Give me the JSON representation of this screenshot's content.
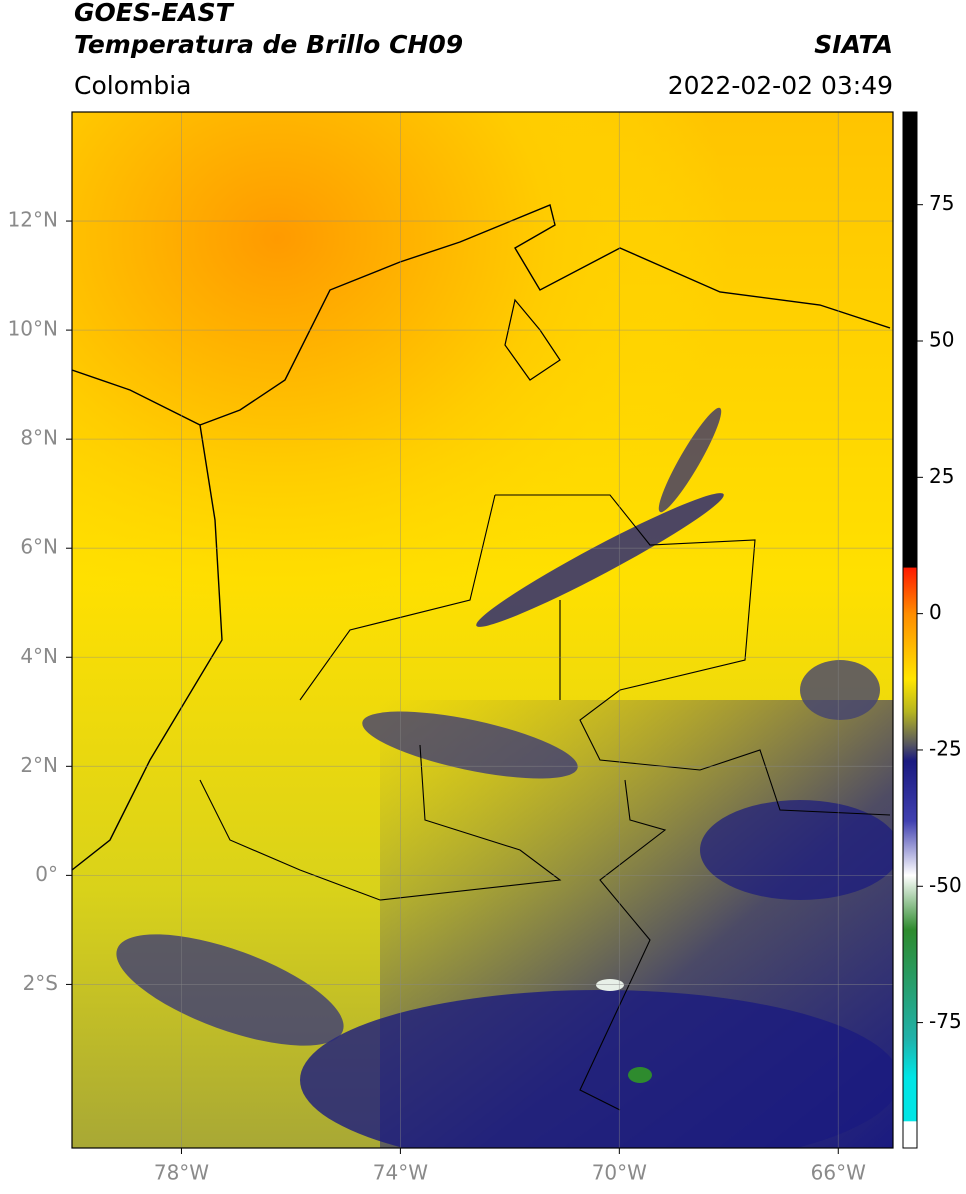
{
  "header": {
    "title": "GOES-EAST",
    "subtitle": "Temperatura de Brillo CH09",
    "region": "Colombia",
    "source": "SIATA",
    "timestamp": "2022-02-02 03:49"
  },
  "map": {
    "lon_range": [
      -80,
      -65
    ],
    "lat_range": [
      -5,
      14
    ],
    "grid": true,
    "lon_ticks": [
      {
        "value": -78,
        "label": "78°W"
      },
      {
        "value": -74,
        "label": "74°W"
      },
      {
        "value": -70,
        "label": "70°W"
      },
      {
        "value": -66,
        "label": "66°W"
      }
    ],
    "lat_ticks": [
      {
        "value": 12,
        "label": "12°N"
      },
      {
        "value": 10,
        "label": "10°N"
      },
      {
        "value": 8,
        "label": "8°N"
      },
      {
        "value": 6,
        "label": "6°N"
      },
      {
        "value": 4,
        "label": "4°N"
      },
      {
        "value": 2,
        "label": "2°N"
      },
      {
        "value": 0,
        "label": "0°"
      },
      {
        "value": -2,
        "label": "2°S"
      }
    ]
  },
  "colorbar": {
    "range": [
      -98,
      92
    ],
    "ticks": [
      75,
      50,
      25,
      0,
      -25,
      -50,
      -75
    ],
    "stops": [
      {
        "value": 92,
        "color": "#000000"
      },
      {
        "value": 8.5,
        "color": "#000000"
      },
      {
        "value": 8.4,
        "color": "#ff1a00"
      },
      {
        "value": 0,
        "color": "#ff8c00"
      },
      {
        "value": -12,
        "color": "#ffe600"
      },
      {
        "value": -18,
        "color": "#b5b520"
      },
      {
        "value": -24,
        "color": "#555560"
      },
      {
        "value": -27,
        "color": "#1a1a80"
      },
      {
        "value": -38,
        "color": "#4040b0"
      },
      {
        "value": -48,
        "color": "#ffffff"
      },
      {
        "value": -58,
        "color": "#2e8b2e"
      },
      {
        "value": -78,
        "color": "#20b2aa"
      },
      {
        "value": -85,
        "color": "#00e5e5"
      },
      {
        "value": -93,
        "color": "#00e5e5"
      },
      {
        "value": -93.2,
        "color": "#ffffff"
      },
      {
        "value": -98,
        "color": "#ffffff"
      }
    ]
  }
}
